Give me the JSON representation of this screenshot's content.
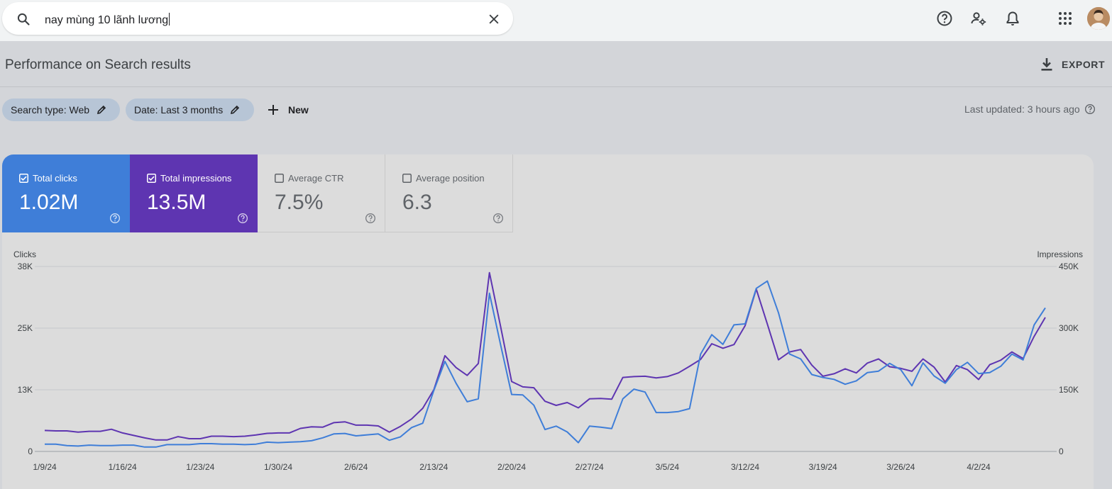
{
  "search": {
    "value": "nay mùng 10 lãnh lương"
  },
  "header": {
    "title": "Performance on Search results",
    "export_label": "EXPORT"
  },
  "filters": {
    "search_type": "Search type: Web",
    "date": "Date: Last 3 months",
    "new_label": "New",
    "last_updated": "Last updated: 3 hours ago"
  },
  "metrics": [
    {
      "label": "Total clicks",
      "value": "1.02M",
      "checked": true,
      "color": "#3f7ed8"
    },
    {
      "label": "Total impressions",
      "value": "13.5M",
      "checked": true,
      "color": "#5e35b1"
    },
    {
      "label": "Average CTR",
      "value": "7.5%",
      "checked": false
    },
    {
      "label": "Average position",
      "value": "6.3",
      "checked": false
    }
  ],
  "icons": [
    "search-icon",
    "clear-icon",
    "help-icon",
    "manage-user-icon",
    "notifications-icon",
    "apps-icon",
    "download-icon",
    "edit-icon",
    "plus-icon",
    "checkbox-icon"
  ],
  "chart_data": {
    "type": "line",
    "left_axis_label": "Clicks",
    "right_axis_label": "Impressions",
    "left_ticks": [
      "38K",
      "25K",
      "13K",
      "0"
    ],
    "right_ticks": [
      "450K",
      "300K",
      "150K",
      "0"
    ],
    "left_ylim": [
      0,
      38000
    ],
    "right_ylim": [
      0,
      450000
    ],
    "x_tick_labels": [
      "1/9/24",
      "1/16/24",
      "1/23/24",
      "1/30/24",
      "2/6/24",
      "2/13/24",
      "2/20/24",
      "2/27/24",
      "3/5/24",
      "3/12/24",
      "3/19/24",
      "3/26/24",
      "4/2/24"
    ],
    "x_tick_index": [
      0,
      7,
      14,
      21,
      28,
      35,
      42,
      49,
      56,
      63,
      70,
      77,
      84
    ],
    "grid": true,
    "series": [
      {
        "name": "Clicks",
        "axis": "left",
        "color": "#3f7ed8",
        "values": [
          1500,
          1500,
          1200,
          1100,
          1300,
          1200,
          1200,
          1300,
          1300,
          900,
          900,
          1400,
          1400,
          1400,
          1600,
          1600,
          1500,
          1500,
          1400,
          1500,
          1900,
          1800,
          1900,
          2000,
          2200,
          2800,
          3600,
          3700,
          3200,
          3400,
          3600,
          2300,
          3000,
          4900,
          5800,
          12500,
          18500,
          14000,
          10200,
          10800,
          32500,
          22000,
          11700,
          11600,
          9500,
          4500,
          5200,
          4000,
          1800,
          5200,
          5000,
          4700,
          10800,
          12800,
          12200,
          8000,
          8000,
          8200,
          8800,
          20000,
          24000,
          22000,
          26000,
          26200,
          33500,
          35000,
          28500,
          20000,
          19000,
          15800,
          15200,
          14800,
          13800,
          14500,
          16200,
          16500,
          18100,
          16800,
          13500,
          18200,
          15500,
          14000,
          16800,
          18300,
          16000,
          16200,
          17500,
          20000,
          18800,
          26000,
          29500
        ]
      },
      {
        "name": "Impressions",
        "axis": "right",
        "color": "#5e35b1",
        "values": [
          51000,
          50000,
          50000,
          47000,
          49000,
          49000,
          54000,
          45000,
          39000,
          33000,
          28000,
          28000,
          36000,
          31000,
          31000,
          37000,
          37000,
          36000,
          37000,
          40000,
          44000,
          45000,
          45000,
          56000,
          60000,
          59000,
          70000,
          72000,
          64000,
          64000,
          62000,
          47000,
          61000,
          79000,
          105000,
          150000,
          233000,
          204000,
          185000,
          214000,
          435000,
          305000,
          170000,
          157000,
          155000,
          122000,
          112000,
          119000,
          106000,
          128000,
          129000,
          127000,
          180000,
          182000,
          183000,
          179000,
          182000,
          191000,
          207000,
          224000,
          262000,
          251000,
          260000,
          306000,
          395000,
          310000,
          223000,
          242000,
          248000,
          210000,
          183000,
          189000,
          201000,
          191000,
          215000,
          225000,
          206000,
          202000,
          195000,
          225000,
          205000,
          169000,
          209000,
          199000,
          175000,
          211000,
          222000,
          242000,
          226000,
          280000,
          326000
        ]
      }
    ]
  }
}
